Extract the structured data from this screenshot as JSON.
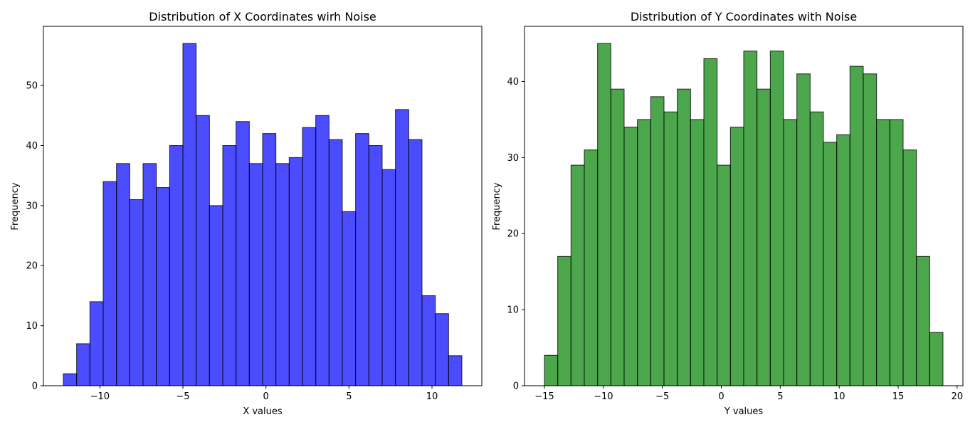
{
  "chart_data": [
    {
      "type": "bar",
      "title": "Distribution of X Coordinates wirh Noise",
      "xlabel": "X values",
      "ylabel": "Frequency",
      "color": "#0000ff",
      "opacity": 0.7,
      "edgecolor": "#000000",
      "bins": 30,
      "bin_start": -12.2,
      "bin_end": 11.8,
      "values": [
        2,
        7,
        14,
        34,
        37,
        31,
        37,
        33,
        40,
        57,
        45,
        30,
        40,
        44,
        37,
        42,
        37,
        38,
        43,
        45,
        41,
        29,
        42,
        40,
        36,
        46,
        41,
        15,
        12,
        5
      ],
      "xlim": [
        -13.4,
        13.0
      ],
      "ylim": [
        0,
        59.85
      ],
      "xticks": [
        -10,
        -5,
        0,
        5,
        10
      ],
      "xtick_labels": [
        "−10",
        "−5",
        "0",
        "5",
        "10"
      ],
      "yticks": [
        0,
        10,
        20,
        30,
        40,
        50
      ],
      "ytick_labels": [
        "0",
        "10",
        "20",
        "30",
        "40",
        "50"
      ]
    },
    {
      "type": "bar",
      "title": "Distribution of Y Coordinates with Noise",
      "xlabel": "Y values",
      "ylabel": "Frequency",
      "color": "#008000",
      "opacity": 0.7,
      "edgecolor": "#000000",
      "bins": 30,
      "bin_start": -15.0,
      "bin_end": 18.8,
      "values": [
        4,
        17,
        29,
        31,
        45,
        39,
        34,
        35,
        38,
        36,
        39,
        35,
        43,
        29,
        34,
        44,
        39,
        44,
        35,
        41,
        36,
        32,
        33,
        42,
        41,
        35,
        35,
        31,
        17,
        7
      ],
      "xlim": [
        -16.69,
        20.49
      ],
      "ylim": [
        0,
        47.25
      ],
      "xticks": [
        -15,
        -10,
        -5,
        0,
        5,
        10,
        15,
        20
      ],
      "xtick_labels": [
        "−15",
        "−10",
        "−5",
        "0",
        "5",
        "10",
        "15",
        "20"
      ],
      "yticks": [
        0,
        10,
        20,
        30,
        40
      ],
      "ytick_labels": [
        "0",
        "10",
        "20",
        "30",
        "40"
      ]
    }
  ]
}
